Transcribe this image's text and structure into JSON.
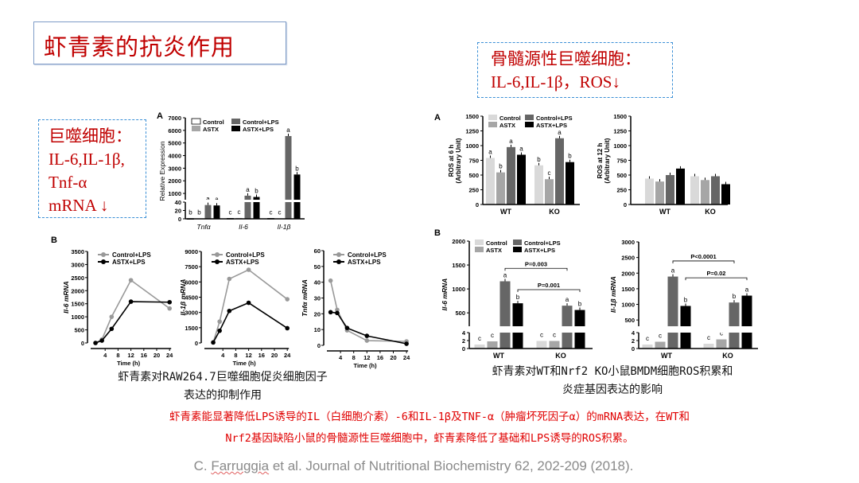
{
  "slide": {
    "title": "虾青素的抗炎作用",
    "left_note": [
      "巨噬细胞：",
      "IL-6,IL-1β,",
      "Tnf-α",
      "mRNA ↓"
    ],
    "right_note": [
      "骨髓源性巨噬细胞：",
      "IL-6,IL-1β，ROS↓"
    ],
    "left_caption": [
      "虾青素对RAW264.7巨噬细胞促炎细胞因子",
      "表达的抑制作用"
    ],
    "right_caption": [
      "虾青素对WT和Nrf2 KO小鼠BMDM细胞ROS积累和",
      "炎症基因表达的影响"
    ],
    "summary": [
      "虾青素能显著降低LPS诱导的IL（白细胞介素）-6和IL-1β及TNF-α（肿瘤坏死因子α）的mRNA表达，在WT和",
      "Nrf2基因缺陷小鼠的骨髓源性巨噬细胞中，虾青素降低了基础和LPS诱导的ROS积累。"
    ],
    "citation_prefix": "C. ",
    "citation_author": "Farruggia",
    "citation_rest": " et al. Journal of Nutritional Biochemistry 62, 202-209 (2018)."
  },
  "colors": {
    "accent_red": "#c00000",
    "dashed_border": "#3a8fd6"
  },
  "chart_data": [
    {
      "type": "bar",
      "panel": "A",
      "ylabel": "Relative Expression",
      "categories": [
        "Tnfα",
        "Il-6",
        "Il-1β"
      ],
      "yticks": [
        0,
        20,
        40,
        1000,
        2000,
        3000,
        4000,
        5000,
        6000,
        7000
      ],
      "broken_axis": [
        [
          0,
          40
        ],
        [
          1000,
          7000
        ]
      ],
      "series": [
        {
          "name": "Control",
          "color": "#ffffff",
          "values": [
            0.5,
            1,
            1
          ],
          "letters": [
            "b",
            "c",
            "c"
          ]
        },
        {
          "name": "ASTX",
          "color": "#a6a6a6",
          "values": [
            0.5,
            2,
            1
          ],
          "letters": [
            "b",
            "c",
            "c"
          ]
        },
        {
          "name": "Control+LPS",
          "color": "#666666",
          "values": [
            33,
            820,
            5550
          ],
          "letters": [
            "a",
            "a",
            "a"
          ]
        },
        {
          "name": "ASTX+LPS",
          "color": "#000000",
          "values": [
            32,
            720,
            2500
          ],
          "letters": [
            "a",
            "b",
            "b"
          ]
        }
      ]
    },
    {
      "type": "line",
      "panel": "B",
      "ylabel": "Il-6 mRNA",
      "xlabel": "Time (h)",
      "x": [
        1,
        3,
        6,
        12,
        24
      ],
      "xticks": [
        4,
        8,
        12,
        16,
        20,
        24
      ],
      "ylim": [
        0,
        3500
      ],
      "yticks": [
        0,
        500,
        1000,
        1500,
        2000,
        2500,
        3000,
        3500
      ],
      "series": [
        {
          "name": "Control+LPS",
          "color": "#999999",
          "values": [
            0,
            130,
            1000,
            2400,
            1320
          ]
        },
        {
          "name": "ASTX+LPS",
          "color": "#000000",
          "values": [
            0,
            90,
            540,
            1580,
            1560
          ]
        }
      ]
    },
    {
      "type": "line",
      "ylabel": "Il-1β mRNA",
      "xlabel": "Time (h)",
      "x": [
        1,
        3,
        6,
        12,
        24
      ],
      "xticks": [
        4,
        8,
        12,
        16,
        20,
        24
      ],
      "ylim": [
        0,
        9000
      ],
      "yticks": [
        0,
        1500,
        3000,
        4500,
        6000,
        7500,
        9000
      ],
      "series": [
        {
          "name": "Control+LPS",
          "color": "#999999",
          "values": [
            50,
            2100,
            6300,
            7200,
            4300
          ]
        },
        {
          "name": "ASTX+LPS",
          "color": "#000000",
          "values": [
            50,
            1200,
            3150,
            3950,
            1450
          ]
        }
      ]
    },
    {
      "type": "line",
      "ylabel": "Tnfα mRNA",
      "xlabel": "Time (h)",
      "x": [
        1,
        3,
        6,
        12,
        24
      ],
      "xticks": [
        4,
        8,
        12,
        16,
        20,
        24
      ],
      "ylim": [
        0,
        60
      ],
      "yticks": [
        0,
        10,
        20,
        30,
        40,
        50,
        60
      ],
      "series": [
        {
          "name": "Control+LPS",
          "color": "#999999",
          "values": [
            41,
            22.5,
            9.5,
            3,
            2.5
          ]
        },
        {
          "name": "ASTX+LPS",
          "color": "#000000",
          "values": [
            21,
            20.5,
            11,
            6,
            1
          ]
        }
      ]
    },
    {
      "type": "bar",
      "panel": "A",
      "ylabel": [
        "ROS at 6 h",
        "(Arbitrary Unit)"
      ],
      "categories": [
        "WT",
        "KO"
      ],
      "ylim": [
        0,
        1500
      ],
      "yticks": [
        0,
        250,
        500,
        750,
        1000,
        1250,
        1500
      ],
      "series": [
        {
          "name": "Control",
          "color": "#d9d9d9",
          "values": [
            790,
            665
          ],
          "letters": [
            "a",
            "b"
          ]
        },
        {
          "name": "ASTX",
          "color": "#a6a6a6",
          "values": [
            545,
            430
          ],
          "letters": [
            "b",
            "c"
          ]
        },
        {
          "name": "Control+LPS",
          "color": "#666666",
          "values": [
            975,
            1125
          ],
          "letters": [
            "a",
            "a"
          ]
        },
        {
          "name": "ASTX+LPS",
          "color": "#000000",
          "values": [
            845,
            720
          ],
          "letters": [
            "a",
            "b"
          ]
        }
      ]
    },
    {
      "type": "bar",
      "ylabel": [
        "ROS at 12 h",
        "(Arbitrary Unit)"
      ],
      "categories": [
        "WT",
        "KO"
      ],
      "ylim": [
        0,
        1500
      ],
      "yticks": [
        0,
        250,
        500,
        750,
        1000,
        1250,
        1500
      ],
      "series": [
        {
          "name": "Control",
          "color": "#d9d9d9",
          "values": [
            440,
            480
          ]
        },
        {
          "name": "ASTX",
          "color": "#a6a6a6",
          "values": [
            390,
            415
          ]
        },
        {
          "name": "Control+LPS",
          "color": "#666666",
          "values": [
            500,
            480
          ]
        },
        {
          "name": "ASTX+LPS",
          "color": "#000000",
          "values": [
            610,
            345
          ]
        }
      ]
    },
    {
      "type": "bar",
      "panel": "B",
      "ylabel": "Il-6 mRNA",
      "categories": [
        "WT",
        "KO"
      ],
      "yticks": [
        0,
        2,
        4,
        500,
        1000,
        1500,
        2000
      ],
      "broken_axis": [
        [
          0,
          4
        ],
        [
          500,
          2000
        ]
      ],
      "series": [
        {
          "name": "Control",
          "color": "#d9d9d9",
          "values": [
            1,
            1.9
          ],
          "letters": [
            "c",
            "c"
          ]
        },
        {
          "name": "ASTX",
          "color": "#a6a6a6",
          "values": [
            1.8,
            1.9
          ],
          "letters": [
            "c",
            "c"
          ]
        },
        {
          "name": "Control+LPS",
          "color": "#666666",
          "values": [
            1160,
            650
          ],
          "letters": [
            "a",
            "a"
          ]
        },
        {
          "name": "ASTX+LPS",
          "color": "#000000",
          "values": [
            700,
            560
          ],
          "letters": [
            "b",
            "b"
          ]
        }
      ],
      "comparisons": [
        {
          "label": "P=0.003",
          "series": "Control+LPS",
          "level": 1430
        },
        {
          "label": "P=0.001",
          "series": "ASTX+LPS",
          "level": 985
        }
      ]
    },
    {
      "type": "bar",
      "ylabel": "Il-1β mRNA",
      "categories": [
        "WT",
        "KO"
      ],
      "yticks": [
        0,
        2,
        4,
        500,
        1000,
        1500,
        2000,
        2500,
        3000
      ],
      "broken_axis": [
        [
          0,
          4
        ],
        [
          500,
          3000
        ]
      ],
      "series": [
        {
          "name": "Control",
          "color": "#d9d9d9",
          "values": [
            1,
            1.2
          ],
          "letters": [
            "c",
            "c"
          ]
        },
        {
          "name": "ASTX",
          "color": "#a6a6a6",
          "values": [
            1.7,
            2.3
          ],
          "letters": [
            "c",
            "c"
          ]
        },
        {
          "name": "Control+LPS",
          "color": "#666666",
          "values": [
            1890,
            1060
          ],
          "letters": [
            "a",
            "b"
          ]
        },
        {
          "name": "ASTX+LPS",
          "color": "#000000",
          "values": [
            950,
            1280
          ],
          "letters": [
            "b",
            "a"
          ]
        }
      ],
      "comparisons": [
        {
          "label": "P<0.0001",
          "series": "Control+LPS",
          "level": 2390
        },
        {
          "label": "P=0.02",
          "series": "ASTX+LPS",
          "level": 1850
        }
      ]
    }
  ]
}
